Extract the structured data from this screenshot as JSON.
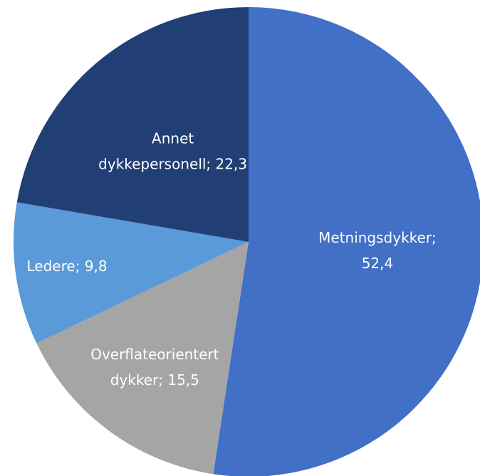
{
  "chart_data": {
    "type": "pie",
    "values": [
      52.4,
      15.5,
      9.8,
      22.3
    ],
    "value_labels": [
      [
        "Metningsdykker;",
        "52,4"
      ],
      [
        "Overflateorientert",
        "dykker; 15,5"
      ],
      [
        "Ledere; 9,8"
      ],
      [
        "Annet",
        "dykkepersonell; 22,3"
      ]
    ],
    "colors": [
      "#4170c6",
      "#a5a5a5",
      "#5a9ad8",
      "#223f75"
    ]
  }
}
